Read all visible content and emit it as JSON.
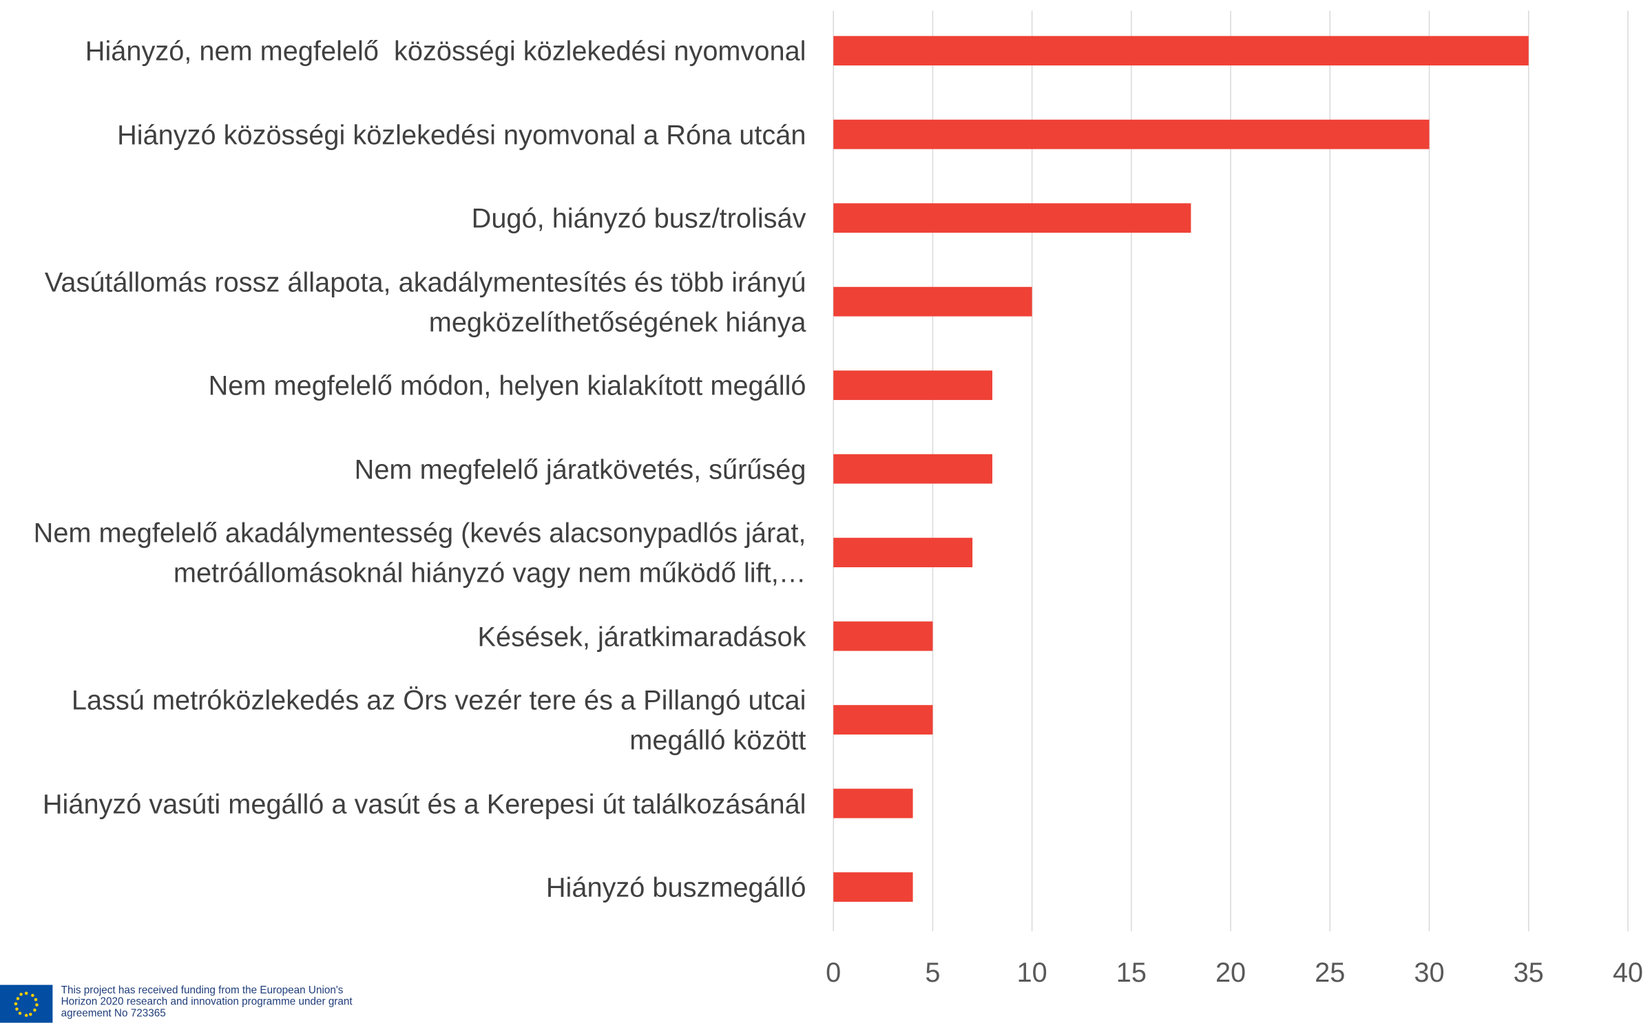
{
  "chart_data": {
    "type": "bar",
    "orientation": "horizontal",
    "categories": [
      "Hiányzó, nem megfelelő  közösségi közlekedési nyomvonal",
      "Hiányzó közösségi közlekedési nyomvonal a Róna utcán",
      "Dugó, hiányzó busz/trolisáv",
      "Vasútállomás rossz állapota, akadálymentesítés és több irányú megközelíthetőségének hiánya",
      "Nem megfelelő módon, helyen kialakított megálló",
      "Nem megfelelő járatkövetés, sűrűség",
      "Nem megfelelő akadálymentesség (kevés alacsonypadlós járat, metróállomásoknál hiányzó vagy nem működő lift,…",
      "Késések, járatkimaradások",
      "Lassú metróközlekedés az Örs vezér tere és a Pillangó utcai megálló között",
      "Hiányzó vasúti megálló a vasút és a Kerepesi út találkozásánál",
      "Hiányzó buszmegálló"
    ],
    "values": [
      35,
      30,
      18,
      10,
      8,
      8,
      7,
      5,
      5,
      4,
      4
    ],
    "color": "#ef4136",
    "xlim": [
      0,
      40
    ],
    "xticks": [
      0,
      5,
      10,
      15,
      20,
      25,
      30,
      35,
      40
    ],
    "grid": true
  },
  "footer": "This project has received funding from the European Union's Horizon 2020 research and innovation programme under grant agreement No 723365"
}
